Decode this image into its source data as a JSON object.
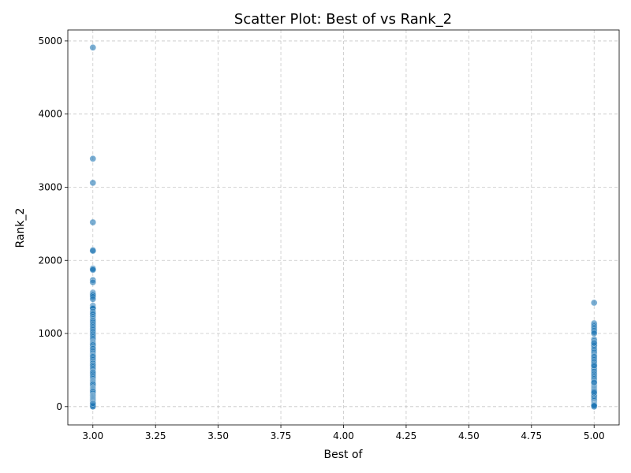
{
  "chart_data": {
    "type": "scatter",
    "title": "Scatter Plot: Best of vs Rank_2",
    "xlabel": "Best of",
    "ylabel": "Rank_2",
    "xlim": [
      2.9,
      5.1
    ],
    "ylim": [
      -250,
      5150
    ],
    "xticks": [
      3.0,
      3.25,
      3.5,
      3.75,
      4.0,
      4.25,
      4.5,
      4.75,
      5.0
    ],
    "xtick_labels": [
      "3.00",
      "3.25",
      "3.50",
      "3.75",
      "4.00",
      "4.25",
      "4.50",
      "4.75",
      "5.00"
    ],
    "yticks": [
      0,
      1000,
      2000,
      3000,
      4000,
      5000
    ],
    "ytick_labels": [
      "0",
      "1000",
      "2000",
      "3000",
      "4000",
      "5000"
    ],
    "grid": true,
    "point_color": "#1f77b4",
    "series": [
      {
        "x": [
          3,
          3,
          3,
          3,
          3,
          3,
          3,
          3,
          3,
          3,
          3,
          3,
          3,
          3,
          3,
          3,
          3,
          3,
          3,
          3,
          3,
          3,
          3,
          3,
          3,
          3,
          3,
          3,
          3,
          3,
          3,
          3,
          3,
          3,
          3,
          3,
          3,
          3,
          3,
          3,
          3,
          3,
          3,
          3,
          3,
          3,
          3,
          3,
          3,
          3,
          3,
          3,
          3,
          3,
          3,
          3,
          3,
          3,
          3,
          3,
          3,
          3,
          3,
          3,
          3,
          3,
          3,
          3,
          3,
          3,
          3,
          3,
          3,
          3,
          3,
          3,
          3,
          3,
          3,
          3,
          3,
          3,
          3,
          3,
          3,
          3,
          3,
          3,
          3,
          3,
          3,
          3,
          3,
          3,
          3,
          3,
          3,
          3,
          3,
          3,
          3,
          3,
          3,
          3,
          3,
          3,
          3,
          3,
          3,
          3,
          3,
          3,
          3,
          3,
          3,
          3,
          3,
          3,
          3,
          3,
          5,
          5,
          5,
          5,
          5,
          5,
          5,
          5,
          5,
          5,
          5,
          5,
          5,
          5,
          5,
          5,
          5,
          5,
          5,
          5,
          5,
          5,
          5,
          5,
          5,
          5,
          5,
          5,
          5,
          5,
          5,
          5,
          5,
          5,
          5,
          5,
          5,
          5,
          5,
          5,
          5,
          5,
          5,
          5,
          5,
          5,
          5,
          5,
          5,
          5,
          5,
          5,
          5,
          5,
          5,
          5,
          5,
          5,
          5,
          5,
          5,
          5,
          5,
          5,
          5,
          5,
          5,
          5,
          5,
          5,
          5,
          5,
          5,
          5,
          5,
          5,
          5,
          5,
          5,
          5,
          5
        ],
        "y": [
          4910,
          3390,
          3060,
          2520,
          2140,
          2130,
          1890,
          1880,
          1870,
          1730,
          1700,
          1560,
          1550,
          1540,
          1530,
          1520,
          1500,
          1470,
          1380,
          1360,
          1350,
          1340,
          1300,
          1280,
          1260,
          1230,
          1200,
          1180,
          1170,
          1150,
          1130,
          1110,
          1090,
          1070,
          1050,
          1030,
          1010,
          990,
          970,
          950,
          930,
          910,
          890,
          880,
          870,
          860,
          850,
          840,
          820,
          800,
          790,
          770,
          750,
          730,
          710,
          700,
          690,
          680,
          660,
          640,
          620,
          600,
          590,
          570,
          560,
          540,
          520,
          500,
          480,
          470,
          460,
          440,
          420,
          400,
          380,
          360,
          350,
          340,
          330,
          320,
          310,
          300,
          280,
          260,
          250,
          240,
          230,
          220,
          210,
          200,
          180,
          160,
          150,
          140,
          130,
          120,
          110,
          100,
          90,
          80,
          70,
          60,
          50,
          40,
          35,
          30,
          25,
          20,
          15,
          12,
          10,
          8,
          6,
          5,
          4,
          3,
          2,
          1,
          18,
          45,
          1420,
          1140,
          1120,
          1100,
          1080,
          1060,
          1040,
          1020,
          1000,
          920,
          900,
          880,
          860,
          850,
          840,
          830,
          800,
          780,
          760,
          740,
          720,
          700,
          690,
          680,
          660,
          640,
          620,
          600,
          580,
          560,
          540,
          520,
          500,
          480,
          460,
          440,
          420,
          400,
          380,
          360,
          340,
          320,
          300,
          290,
          280,
          270,
          260,
          250,
          240,
          230,
          220,
          210,
          200,
          190,
          180,
          170,
          160,
          150,
          140,
          120,
          100,
          80,
          60,
          50,
          40,
          30,
          20,
          15,
          10,
          8,
          5,
          3,
          2,
          1,
          25,
          12,
          210,
          190,
          870,
          560,
          330
        ]
      }
    ]
  }
}
